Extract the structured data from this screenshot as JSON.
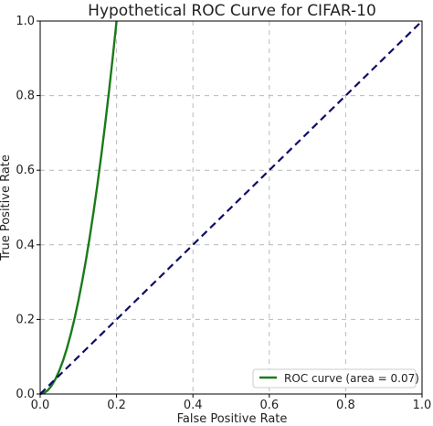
{
  "chart_data": {
    "type": "line",
    "title": "Hypothetical ROC Curve for CIFAR-10",
    "xlabel": "False Positive Rate",
    "ylabel": "True Positive Rate",
    "xlim": [
      0.0,
      1.0
    ],
    "ylim": [
      0.0,
      1.0
    ],
    "grid": true,
    "legend_position": "lower-right",
    "x_ticks": [
      "0.0",
      "0.2",
      "0.4",
      "0.6",
      "0.8",
      "1.0"
    ],
    "y_ticks": [
      "0.0",
      "0.2",
      "0.4",
      "0.6",
      "0.8",
      "1.0"
    ],
    "series": [
      {
        "name": "ROC curve (area = 0.07)",
        "color": "#1a7a1a",
        "style": "solid",
        "x": [
          0.0,
          0.01,
          0.02,
          0.03,
          0.04,
          0.05,
          0.06,
          0.07,
          0.08,
          0.09,
          0.1,
          0.11,
          0.12,
          0.13,
          0.14,
          0.15,
          0.16,
          0.17,
          0.18,
          0.19,
          0.2
        ],
        "y": [
          0.0,
          0.0025,
          0.01,
          0.0225,
          0.04,
          0.0625,
          0.09,
          0.1225,
          0.16,
          0.2025,
          0.25,
          0.3025,
          0.36,
          0.4225,
          0.49,
          0.5625,
          0.64,
          0.7225,
          0.81,
          0.9025,
          1.0
        ]
      },
      {
        "color": "#0d0d6b",
        "style": "dashed",
        "x": [
          0.0,
          1.0
        ],
        "y": [
          0.0,
          1.0
        ]
      }
    ]
  }
}
